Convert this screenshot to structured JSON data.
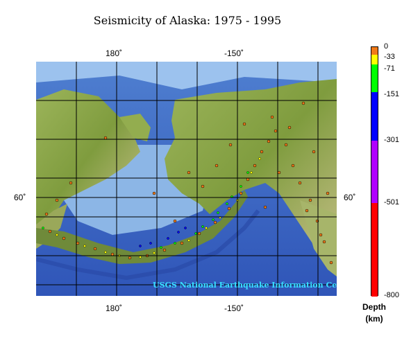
{
  "title": "Seismicity of Alaska: 1975 - 1995",
  "longitude_ticks_top": [
    "180˚",
    "-150˚"
  ],
  "longitude_ticks_bottom": [
    "180˚",
    "-150˚"
  ],
  "latitude_ticks": [
    "60˚",
    "60˚"
  ],
  "credit": "USGS National Earthquake Information Center",
  "colorbar": {
    "title_line1": "Depth",
    "title_line2": "(km)",
    "labels": [
      "0",
      "-33",
      "-71",
      "-151",
      "-301",
      "-501",
      "-800"
    ],
    "bands": [
      {
        "from": 0,
        "to": -33,
        "color": "#f07a18"
      },
      {
        "from": -33,
        "to": -71,
        "color": "#ffff00"
      },
      {
        "from": -71,
        "to": -151,
        "color": "#00ff00"
      },
      {
        "from": -151,
        "to": -301,
        "color": "#0000ff"
      },
      {
        "from": -301,
        "to": -501,
        "color": "#b000ff"
      },
      {
        "from": -501,
        "to": -800,
        "color": "#ff0000"
      }
    ]
  },
  "colors": {
    "ocean": "#3e66c4",
    "shelf": "#8fb8e8",
    "land": "#8aa84a",
    "grid": "#000000"
  }
}
